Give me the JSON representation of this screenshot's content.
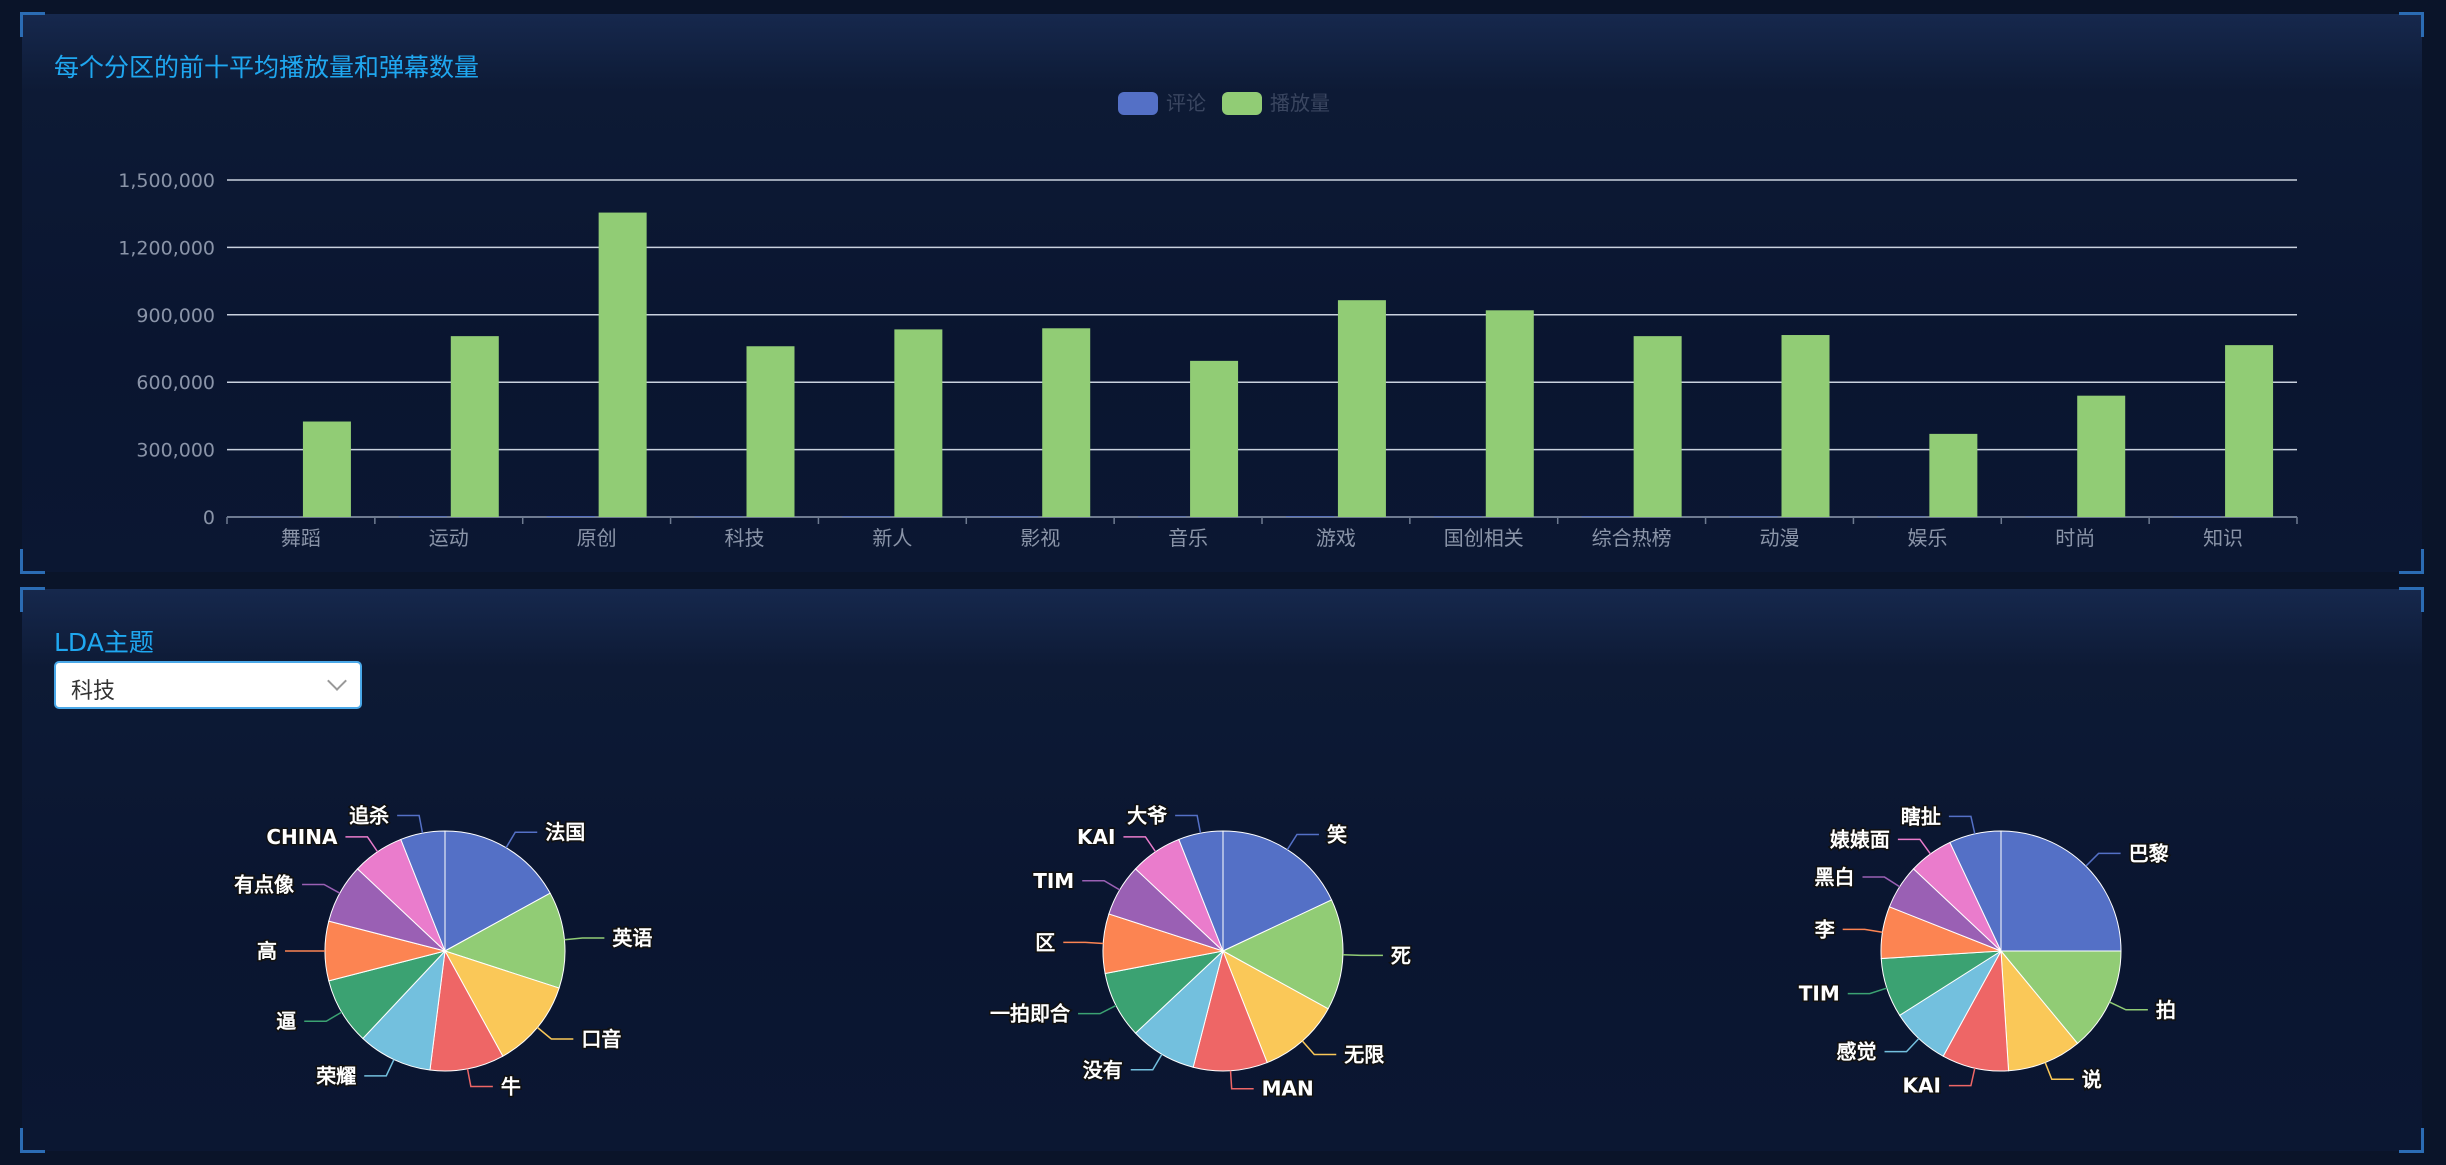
{
  "colors": {
    "title": "#1fa7f0",
    "series_comments": "#5470c6",
    "series_plays": "#91cc75",
    "pie_palette": [
      "#5470c6",
      "#91cc75",
      "#fac858",
      "#ee6666",
      "#73c0de",
      "#3ba272",
      "#fc8452",
      "#9a60b4",
      "#ea7ccc",
      "#5470c6"
    ]
  },
  "top_panel": {
    "title": "每个分区的前十平均播放量和弹幕数量"
  },
  "chart_data": [
    {
      "type": "bar",
      "title": "每个分区的前十平均播放量和弹幕数量",
      "legend": [
        "评论",
        "播放量"
      ],
      "legend_position": "top-center",
      "categories": [
        "舞蹈",
        "运动",
        "原创",
        "科技",
        "新人",
        "影视",
        "音乐",
        "游戏",
        "国创相关",
        "综合热榜",
        "动漫",
        "娱乐",
        "时尚",
        "知识"
      ],
      "series": [
        {
          "name": "评论",
          "values": [
            1500,
            3000,
            4000,
            2500,
            3000,
            2800,
            2200,
            3500,
            3000,
            3200,
            2600,
            2000,
            1800,
            2600
          ]
        },
        {
          "name": "播放量",
          "values": [
            425000,
            805000,
            1355000,
            760000,
            835000,
            840000,
            695000,
            965000,
            920000,
            805000,
            810000,
            370000,
            540000,
            765000
          ]
        }
      ],
      "y_ticks": [
        "0",
        "300,000",
        "600,000",
        "900,000",
        "1,200,000",
        "1,500,000"
      ],
      "ylim": [
        0,
        1500000
      ],
      "grid": true
    },
    {
      "type": "pie",
      "slices": [
        {
          "label": "法国",
          "value": 17
        },
        {
          "label": "英语",
          "value": 13
        },
        {
          "label": "口音",
          "value": 12
        },
        {
          "label": "牛",
          "value": 10
        },
        {
          "label": "荣耀",
          "value": 10
        },
        {
          "label": "逼",
          "value": 9
        },
        {
          "label": "高",
          "value": 8
        },
        {
          "label": "有点像",
          "value": 8
        },
        {
          "label": "CHINA",
          "value": 7
        },
        {
          "label": "追杀",
          "value": 6
        }
      ]
    },
    {
      "type": "pie",
      "slices": [
        {
          "label": "笑",
          "value": 18
        },
        {
          "label": "死",
          "value": 15
        },
        {
          "label": "无限",
          "value": 11
        },
        {
          "label": "MAN",
          "value": 10
        },
        {
          "label": "没有",
          "value": 9
        },
        {
          "label": "一拍即合",
          "value": 9
        },
        {
          "label": "区",
          "value": 8
        },
        {
          "label": "TIM",
          "value": 7
        },
        {
          "label": "KAI",
          "value": 7
        },
        {
          "label": "大爷",
          "value": 6
        }
      ]
    },
    {
      "type": "pie",
      "slices": [
        {
          "label": "巴黎",
          "value": 25
        },
        {
          "label": "拍",
          "value": 14
        },
        {
          "label": "说",
          "value": 10
        },
        {
          "label": "KAI",
          "value": 9
        },
        {
          "label": "感觉",
          "value": 8
        },
        {
          "label": "TIM",
          "value": 8
        },
        {
          "label": "李",
          "value": 7
        },
        {
          "label": "黑白",
          "value": 6
        },
        {
          "label": "婊婊面",
          "value": 6
        },
        {
          "label": "瞎扯",
          "value": 7
        }
      ]
    }
  ],
  "bottom_panel": {
    "title": "LDA主题",
    "select_value": "科技"
  }
}
